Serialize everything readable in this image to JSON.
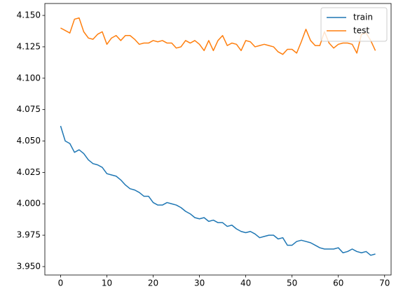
{
  "chart_data": {
    "type": "line",
    "x": [
      0,
      1,
      2,
      3,
      4,
      5,
      6,
      7,
      8,
      9,
      10,
      11,
      12,
      13,
      14,
      15,
      16,
      17,
      18,
      19,
      20,
      21,
      22,
      23,
      24,
      25,
      26,
      27,
      28,
      29,
      30,
      31,
      32,
      33,
      34,
      35,
      36,
      37,
      38,
      39,
      40,
      41,
      42,
      43,
      44,
      45,
      46,
      47,
      48,
      49,
      50,
      51,
      52,
      53,
      54,
      55,
      56,
      57,
      58,
      59,
      60,
      61,
      62,
      63,
      64,
      65,
      66,
      67,
      68
    ],
    "series": [
      {
        "name": "train",
        "color": "#1f77b4",
        "values": [
          4.062,
          4.05,
          4.048,
          4.041,
          4.043,
          4.04,
          4.035,
          4.032,
          4.031,
          4.029,
          4.024,
          4.023,
          4.022,
          4.019,
          4.015,
          4.012,
          4.011,
          4.009,
          4.006,
          4.006,
          4.001,
          3.999,
          3.999,
          4.001,
          4.0,
          3.999,
          3.997,
          3.994,
          3.992,
          3.989,
          3.988,
          3.989,
          3.986,
          3.987,
          3.985,
          3.985,
          3.982,
          3.983,
          3.98,
          3.978,
          3.977,
          3.978,
          3.976,
          3.973,
          3.974,
          3.975,
          3.975,
          3.972,
          3.973,
          3.967,
          3.967,
          3.97,
          3.971,
          3.97,
          3.969,
          3.967,
          3.965,
          3.964,
          3.964,
          3.964,
          3.965,
          3.961,
          3.962,
          3.964,
          3.962,
          3.961,
          3.962,
          3.959,
          3.96
        ]
      },
      {
        "name": "test",
        "color": "#ff7f0e",
        "values": [
          4.14,
          4.138,
          4.136,
          4.147,
          4.148,
          4.137,
          4.132,
          4.131,
          4.135,
          4.137,
          4.127,
          4.132,
          4.134,
          4.13,
          4.134,
          4.134,
          4.131,
          4.127,
          4.128,
          4.128,
          4.13,
          4.129,
          4.13,
          4.128,
          4.128,
          4.124,
          4.125,
          4.13,
          4.128,
          4.13,
          4.127,
          4.122,
          4.13,
          4.122,
          4.13,
          4.134,
          4.126,
          4.128,
          4.127,
          4.122,
          4.13,
          4.129,
          4.125,
          4.126,
          4.127,
          4.126,
          4.125,
          4.121,
          4.119,
          4.123,
          4.123,
          4.12,
          4.129,
          4.139,
          4.13,
          4.126,
          4.126,
          4.137,
          4.128,
          4.124,
          4.127,
          4.128,
          4.128,
          4.127,
          4.12,
          4.135,
          4.136,
          4.13,
          4.122
        ]
      }
    ],
    "xlim": [
      -3.4,
      71.4
    ],
    "xticks": [
      0,
      10,
      20,
      30,
      40,
      50,
      60,
      70
    ],
    "ylim": [
      3.9433,
      4.1595
    ],
    "yticks": [
      {
        "value": 3.95,
        "label": "3.950"
      },
      {
        "value": 3.975,
        "label": "3.975"
      },
      {
        "value": 4.0,
        "label": "4.000"
      },
      {
        "value": 4.025,
        "label": "4.025"
      },
      {
        "value": 4.05,
        "label": "4.050"
      },
      {
        "value": 4.075,
        "label": "4.075"
      },
      {
        "value": 4.1,
        "label": "4.100"
      },
      {
        "value": 4.125,
        "label": "4.125"
      },
      {
        "value": 4.15,
        "label": "4.150"
      }
    ],
    "grid": false,
    "legend": "upper right"
  }
}
